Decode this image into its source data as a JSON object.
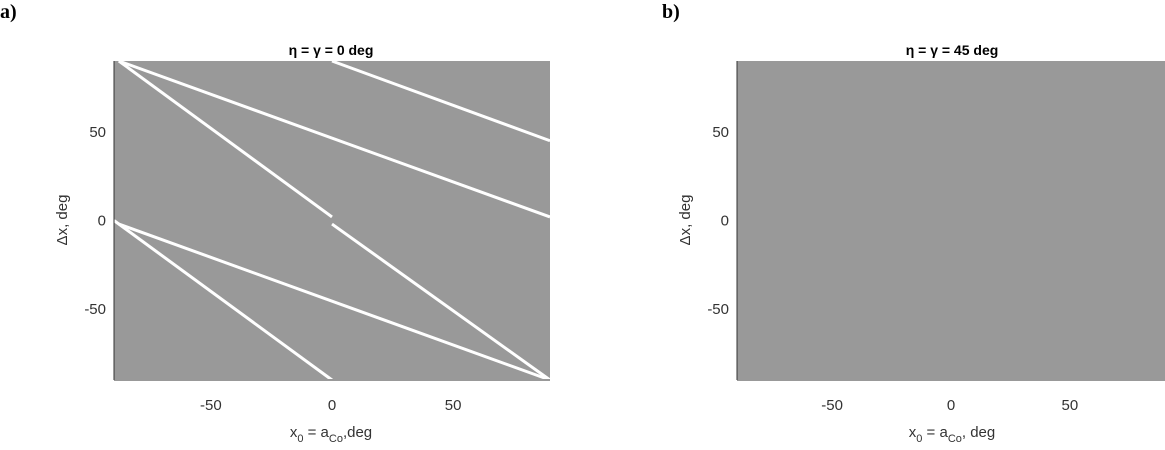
{
  "chart_data": [
    {
      "type": "heatmap",
      "panel_label": "a)",
      "title_lhs": "η = γ = 0 deg",
      "title_text": "η = γ = 0 deg",
      "xlabel_parts": [
        "x",
        "0",
        " = a",
        "Co",
        ",deg"
      ],
      "ylabel": "Δx, deg",
      "xlim": [
        -90,
        90
      ],
      "ylim": [
        -90,
        90
      ],
      "xticks": [
        -50,
        0,
        50
      ],
      "yticks": [
        -50,
        0,
        50
      ],
      "xtick_labels": [
        "-50",
        "0",
        "50"
      ],
      "ytick_labels": [
        "-50",
        "0",
        "50"
      ],
      "fill_color": "#999999",
      "lines": [
        {
          "x": [
            -88,
            90
          ],
          "y": [
            90,
            2
          ]
        },
        {
          "x": [
            -88,
            90
          ],
          "y": [
            -2,
            -90
          ]
        },
        {
          "x": [
            0,
            90
          ],
          "y": [
            90,
            45
          ]
        },
        {
          "x": [
            -90,
            0
          ],
          "y": [
            0,
            -90
          ]
        },
        {
          "x": [
            -88,
            0
          ],
          "y": [
            90,
            2
          ]
        },
        {
          "x": [
            0,
            90
          ],
          "y": [
            -2,
            -90
          ]
        }
      ]
    },
    {
      "type": "heatmap",
      "panel_label": "b)",
      "title_text": "η = γ = 45 deg",
      "xlabel_parts": [
        "x",
        "0",
        " = a",
        "Co",
        ", deg"
      ],
      "ylabel": "Δx, deg",
      "xlim": [
        -90,
        90
      ],
      "ylim": [
        -90,
        90
      ],
      "xticks": [
        -50,
        0,
        50
      ],
      "yticks": [
        -50,
        0,
        50
      ],
      "xtick_labels": [
        "-50",
        "0",
        "50"
      ],
      "ytick_labels": [
        "-50",
        "0",
        "50"
      ],
      "fill_color": "#999999",
      "lines": []
    }
  ]
}
